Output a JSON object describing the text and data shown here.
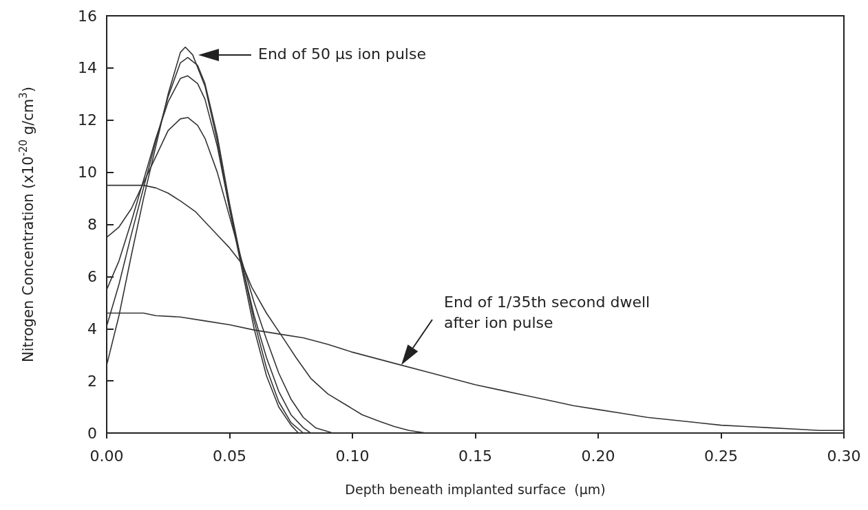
{
  "chart_data": {
    "type": "line",
    "xlabel": "Depth beneath implanted surface  (µm)",
    "ylabel": "Nitrogen Concentration (x10$^{-20}$ g/cm$^{3}$)",
    "x": [
      0,
      0.005,
      0.01,
      0.015,
      0.02,
      0.025,
      0.03,
      0.033,
      0.037,
      0.04,
      0.045,
      0.05,
      0.055,
      0.06,
      0.065,
      0.07,
      0.075,
      0.08,
      0.085,
      0.092
    ],
    "series": [
      {
        "color": "#333333",
        "x": [
          0,
          0.005,
          0.01,
          0.015,
          0.02,
          0.025,
          0.03,
          0.032,
          0.035,
          0.04,
          0.045,
          0.05,
          0.055,
          0.06,
          0.065,
          0.07,
          0.075,
          0.078,
          0.3
        ],
        "values": [
          2.6,
          4.5,
          6.8,
          9.0,
          11.0,
          13.0,
          14.6,
          14.8,
          14.5,
          13.3,
          11.2,
          8.6,
          6.3,
          4.0,
          2.2,
          1.0,
          0.3,
          0,
          0
        ]
      },
      {
        "color": "#333333",
        "x": [
          0,
          0.005,
          0.01,
          0.015,
          0.02,
          0.025,
          0.03,
          0.033,
          0.037,
          0.04,
          0.045,
          0.05,
          0.055,
          0.06,
          0.065,
          0.07,
          0.075,
          0.08
        ],
        "values": [
          4.1,
          5.7,
          7.6,
          9.4,
          11.2,
          12.9,
          14.2,
          14.4,
          14.1,
          13.4,
          11.4,
          8.8,
          6.5,
          4.3,
          2.5,
          1.2,
          0.4,
          0
        ]
      },
      {
        "color": "#333333",
        "x": [
          0,
          0.005,
          0.01,
          0.015,
          0.02,
          0.025,
          0.03,
          0.033,
          0.037,
          0.04,
          0.045,
          0.05,
          0.055,
          0.06,
          0.065,
          0.07,
          0.075,
          0.08,
          0.083
        ],
        "values": [
          5.5,
          6.6,
          8.1,
          9.7,
          11.3,
          12.7,
          13.6,
          13.7,
          13.4,
          12.8,
          11.0,
          8.6,
          6.5,
          4.5,
          2.9,
          1.6,
          0.7,
          0.2,
          0
        ]
      },
      {
        "color": "#333333",
        "values": [
          7.5,
          7.9,
          8.6,
          9.6,
          10.6,
          11.6,
          12.05,
          12.1,
          11.8,
          11.3,
          10.0,
          8.3,
          6.6,
          5.0,
          3.6,
          2.3,
          1.3,
          0.6,
          0.2,
          0
        ]
      },
      {
        "color": "#333333",
        "x": [
          0,
          0.015,
          0.02,
          0.025,
          0.03,
          0.036,
          0.04,
          0.045,
          0.05,
          0.055,
          0.059,
          0.065,
          0.0714,
          0.077,
          0.083,
          0.09,
          0.097,
          0.104,
          0.111,
          0.117,
          0.123,
          0.13
        ],
        "values": [
          9.5,
          9.5,
          9.4,
          9.2,
          8.9,
          8.5,
          8.1,
          7.6,
          7.1,
          6.5,
          5.6,
          4.6,
          3.7,
          2.9,
          2.1,
          1.5,
          1.1,
          0.7,
          0.45,
          0.25,
          0.1,
          0
        ]
      },
      {
        "color": "#333333",
        "x": [
          0,
          0.015,
          0.02,
          0.03,
          0.04,
          0.05,
          0.06,
          0.07,
          0.08,
          0.09,
          0.1,
          0.11,
          0.12,
          0.13,
          0.14,
          0.15,
          0.16,
          0.17,
          0.18,
          0.19,
          0.2,
          0.21,
          0.22,
          0.23,
          0.24,
          0.25,
          0.26,
          0.27,
          0.28,
          0.29,
          0.3
        ],
        "values": [
          4.6,
          4.6,
          4.5,
          4.45,
          4.3,
          4.15,
          3.95,
          3.8,
          3.65,
          3.4,
          3.1,
          2.85,
          2.6,
          2.35,
          2.1,
          1.85,
          1.65,
          1.45,
          1.25,
          1.05,
          0.9,
          0.75,
          0.6,
          0.5,
          0.4,
          0.3,
          0.25,
          0.2,
          0.15,
          0.1,
          0.1
        ]
      }
    ],
    "xlim": [
      0,
      0.3
    ],
    "xticks": [
      {
        "value": 0,
        "label": "0.00"
      },
      {
        "value": 0.05,
        "label": "0.05"
      },
      {
        "value": 0.1,
        "label": "0.10"
      },
      {
        "value": 0.15,
        "label": "0.15"
      },
      {
        "value": 0.2,
        "label": "0.20"
      },
      {
        "value": 0.25,
        "label": "0.25"
      },
      {
        "value": 0.3,
        "label": "0.30"
      }
    ],
    "ylim": [
      0,
      16
    ],
    "yticks": [
      0,
      2,
      4,
      6,
      8,
      10,
      12,
      14,
      16
    ],
    "annotations": [
      "End of 50 µs ion pulse",
      "End of 1/35th second dwell after ion pulse"
    ],
    "grid": false,
    "marker": "none",
    "line_style": "solid"
  }
}
